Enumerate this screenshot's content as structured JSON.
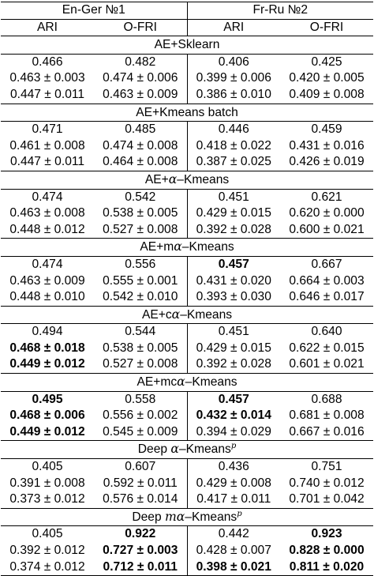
{
  "header": {
    "dataset1": "En-Ger №1",
    "dataset2": "Fr-Ru №2",
    "metric_ari": "ARI",
    "metric_ofri": "O-FRI"
  },
  "sections": [
    {
      "title_prefix": "AE+Sklearn",
      "title_greek": "",
      "title_suffix": "",
      "title_sup": "",
      "rows": [
        [
          {
            "v": "0.466",
            "b": false
          },
          {
            "v": "0.482",
            "b": false
          },
          {
            "v": "0.406",
            "b": false
          },
          {
            "v": "0.425",
            "b": false
          }
        ],
        [
          {
            "v": "0.463 ± 0.003",
            "b": false
          },
          {
            "v": "0.474 ± 0.006",
            "b": false
          },
          {
            "v": "0.399 ± 0.006",
            "b": false
          },
          {
            "v": "0.420 ± 0.005",
            "b": false
          }
        ],
        [
          {
            "v": "0.447 ± 0.011",
            "b": false
          },
          {
            "v": "0.463 ± 0.009",
            "b": false
          },
          {
            "v": "0.386 ± 0.010",
            "b": false
          },
          {
            "v": "0.409 ± 0.008",
            "b": false
          }
        ]
      ]
    },
    {
      "title_prefix": "AE+Kmeans batch",
      "title_greek": "",
      "title_suffix": "",
      "title_sup": "",
      "rows": [
        [
          {
            "v": "0.471",
            "b": false
          },
          {
            "v": "0.485",
            "b": false
          },
          {
            "v": "0.446",
            "b": false
          },
          {
            "v": "0.459",
            "b": false
          }
        ],
        [
          {
            "v": "0.461 ± 0.008",
            "b": false
          },
          {
            "v": "0.474 ± 0.008",
            "b": false
          },
          {
            "v": "0.418 ± 0.022",
            "b": false
          },
          {
            "v": "0.431 ± 0.016",
            "b": false
          }
        ],
        [
          {
            "v": "0.447 ± 0.011",
            "b": false
          },
          {
            "v": "0.464 ± 0.008",
            "b": false
          },
          {
            "v": "0.387 ± 0.025",
            "b": false
          },
          {
            "v": "0.426 ± 0.019",
            "b": false
          }
        ]
      ]
    },
    {
      "title_prefix": "AE+",
      "title_greek": "α",
      "title_suffix": "–Kmeans",
      "title_sup": "",
      "rows": [
        [
          {
            "v": "0.474",
            "b": false
          },
          {
            "v": "0.542",
            "b": false
          },
          {
            "v": "0.451",
            "b": false
          },
          {
            "v": "0.621",
            "b": false
          }
        ],
        [
          {
            "v": "0.463 ± 0.008",
            "b": false
          },
          {
            "v": "0.538 ± 0.005",
            "b": false
          },
          {
            "v": "0.429 ± 0.015",
            "b": false
          },
          {
            "v": "0.620 ± 0.000",
            "b": false
          }
        ],
        [
          {
            "v": "0.448 ± 0.012",
            "b": false
          },
          {
            "v": "0.527 ± 0.008",
            "b": false
          },
          {
            "v": "0.392 ± 0.028",
            "b": false
          },
          {
            "v": "0.600 ± 0.021",
            "b": false
          }
        ]
      ]
    },
    {
      "title_prefix": "AE+m",
      "title_greek": "α",
      "title_suffix": "–Kmeans",
      "title_sup": "",
      "rows": [
        [
          {
            "v": "0.474",
            "b": false
          },
          {
            "v": "0.556",
            "b": false
          },
          {
            "v": "0.457",
            "b": true
          },
          {
            "v": "0.667",
            "b": false
          }
        ],
        [
          {
            "v": "0.463 ± 0.009",
            "b": false
          },
          {
            "v": "0.555 ± 0.001",
            "b": false
          },
          {
            "v": "0.431 ± 0.020",
            "b": false
          },
          {
            "v": "0.664 ± 0.003",
            "b": false
          }
        ],
        [
          {
            "v": "0.448 ± 0.010",
            "b": false
          },
          {
            "v": "0.542 ± 0.010",
            "b": false
          },
          {
            "v": "0.393 ± 0.030",
            "b": false
          },
          {
            "v": "0.646 ± 0.017",
            "b": false
          }
        ]
      ]
    },
    {
      "title_prefix": "AE+c",
      "title_greek": "α",
      "title_suffix": "–Kmeans",
      "title_sup": "",
      "rows": [
        [
          {
            "v": "0.494",
            "b": false
          },
          {
            "v": "0.544",
            "b": false
          },
          {
            "v": "0.451",
            "b": false
          },
          {
            "v": "0.640",
            "b": false
          }
        ],
        [
          {
            "v": "0.468 ± 0.018",
            "b": true
          },
          {
            "v": "0.538 ± 0.005",
            "b": false
          },
          {
            "v": "0.429 ± 0.015",
            "b": false
          },
          {
            "v": "0.622 ± 0.015",
            "b": false
          }
        ],
        [
          {
            "v": "0.449 ± 0.012",
            "b": true
          },
          {
            "v": "0.527 ± 0.008",
            "b": false
          },
          {
            "v": "0.392 ± 0.028",
            "b": false
          },
          {
            "v": "0.601 ± 0.021",
            "b": false
          }
        ]
      ]
    },
    {
      "title_prefix": "AE+mc",
      "title_greek": "α",
      "title_suffix": "–Kmeans",
      "title_sup": "",
      "rows": [
        [
          {
            "v": "0.495",
            "b": true
          },
          {
            "v": "0.558",
            "b": false
          },
          {
            "v": "0.457",
            "b": true
          },
          {
            "v": "0.688",
            "b": false
          }
        ],
        [
          {
            "v": "0.468 ± 0.006",
            "b": true
          },
          {
            "v": "0.556 ± 0.002",
            "b": false
          },
          {
            "v": "0.432 ± 0.014",
            "b": true
          },
          {
            "v": "0.681 ± 0.008",
            "b": false
          }
        ],
        [
          {
            "v": "0.449 ± 0.012",
            "b": true
          },
          {
            "v": "0.545 ± 0.009",
            "b": false
          },
          {
            "v": "0.394 ± 0.029",
            "b": false
          },
          {
            "v": "0.667 ± 0.016",
            "b": false
          }
        ]
      ]
    },
    {
      "title_prefix": "Deep ",
      "title_greek": "α",
      "title_suffix": "–Kmeans",
      "title_sup": "p",
      "rows": [
        [
          {
            "v": "0.405",
            "b": false
          },
          {
            "v": "0.607",
            "b": false
          },
          {
            "v": "0.436",
            "b": false
          },
          {
            "v": "0.751",
            "b": false
          }
        ],
        [
          {
            "v": "0.391 ± 0.008",
            "b": false
          },
          {
            "v": "0.592 ± 0.011",
            "b": false
          },
          {
            "v": "0.429 ± 0.008",
            "b": false
          },
          {
            "v": "0.740 ± 0.012",
            "b": false
          }
        ],
        [
          {
            "v": "0.373 ± 0.012",
            "b": false
          },
          {
            "v": "0.576 ± 0.014",
            "b": false
          },
          {
            "v": "0.417 ± 0.011",
            "b": false
          },
          {
            "v": "0.701 ± 0.042",
            "b": false
          }
        ]
      ]
    },
    {
      "title_prefix": "Deep ",
      "title_greek": "mα",
      "title_suffix": "–Kmeans",
      "title_sup": "p",
      "rows": [
        [
          {
            "v": "0.405",
            "b": false
          },
          {
            "v": "0.922",
            "b": true
          },
          {
            "v": "0.442",
            "b": false
          },
          {
            "v": "0.923",
            "b": true
          }
        ],
        [
          {
            "v": "0.392 ± 0.012",
            "b": false
          },
          {
            "v": "0.727 ± 0.003",
            "b": true
          },
          {
            "v": "0.428 ± 0.007",
            "b": false
          },
          {
            "v": "0.828 ± 0.000",
            "b": true
          }
        ],
        [
          {
            "v": "0.374 ± 0.012",
            "b": false
          },
          {
            "v": "0.712 ± 0.011",
            "b": true
          },
          {
            "v": "0.398 ± 0.021",
            "b": true
          },
          {
            "v": "0.811 ± 0.020",
            "b": true
          }
        ]
      ]
    }
  ]
}
